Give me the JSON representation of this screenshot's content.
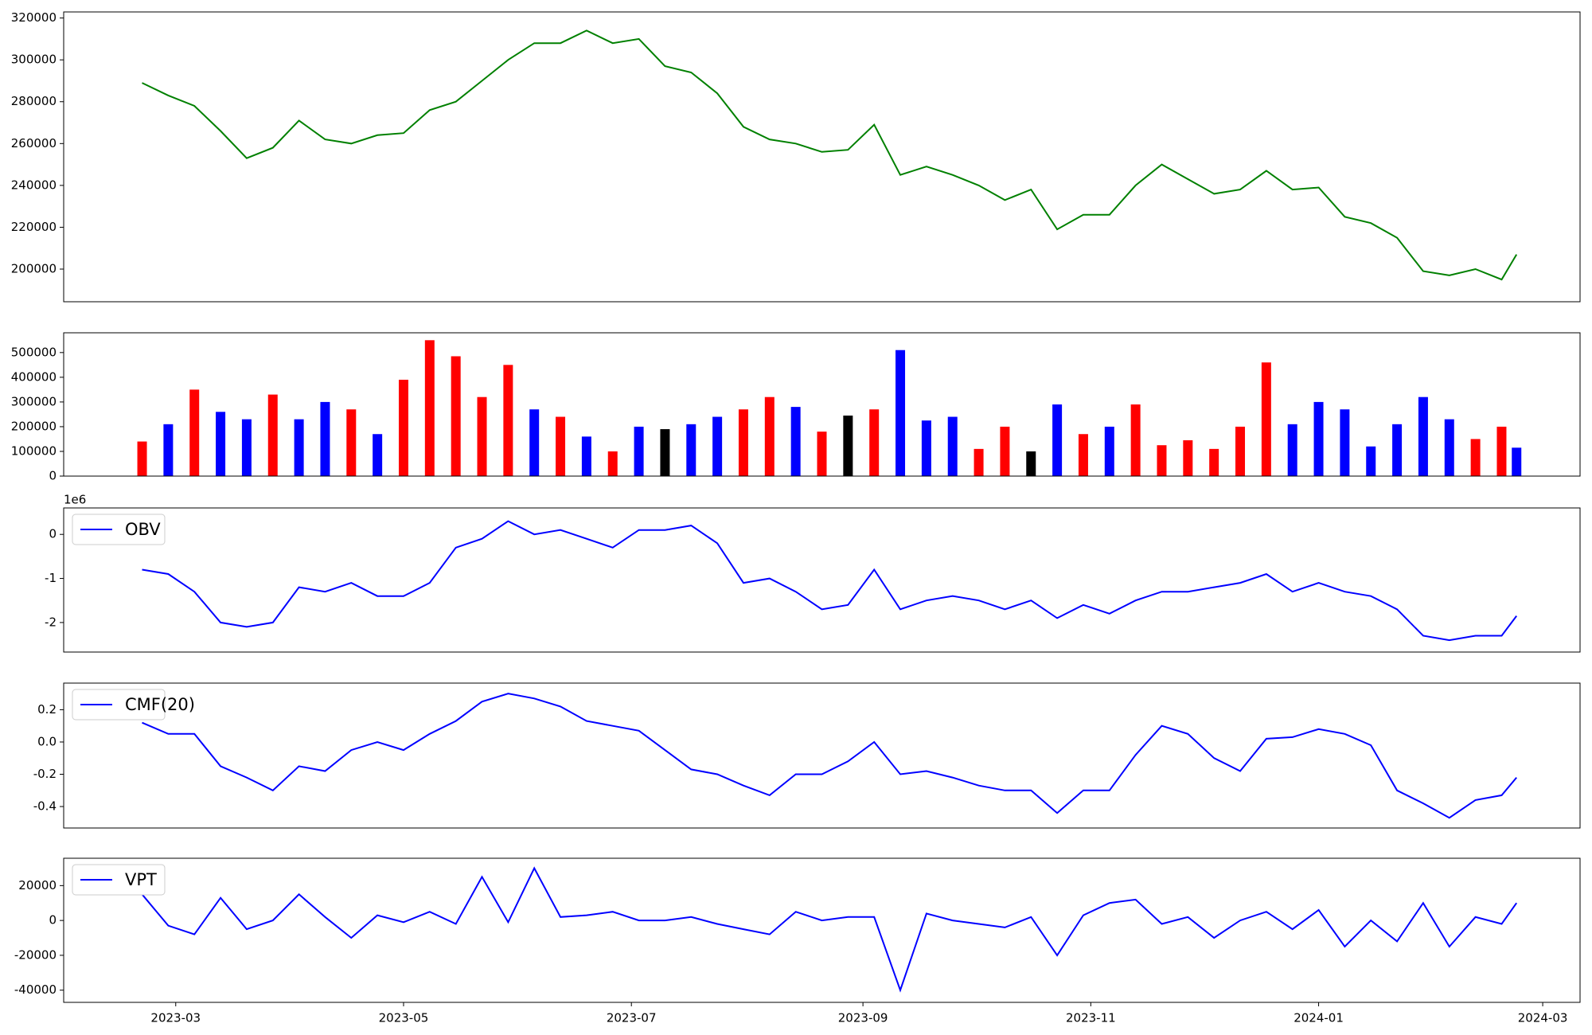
{
  "chart_data": [
    {
      "type": "line",
      "series": [
        {
          "color": "#008000",
          "values": [
            289000,
            283000,
            278000,
            266000,
            253000,
            258000,
            271000,
            262000,
            260000,
            264000,
            265000,
            276000,
            280000,
            290000,
            300000,
            308000,
            308000,
            314000,
            308000,
            310000,
            297000,
            294000,
            284000,
            268000,
            262000,
            260000,
            256000,
            257000,
            269000,
            245000,
            249000,
            245000,
            240000,
            233000,
            238000,
            219000,
            226000,
            226000,
            240000,
            250000,
            243000,
            236000,
            238000,
            247000,
            238000,
            239000,
            225000,
            222000,
            215000,
            199000,
            197000,
            200000,
            195000,
            207000
          ]
        }
      ],
      "ylim": [
        184400,
        322900
      ],
      "yticks": [
        200000,
        220000,
        240000,
        260000,
        280000,
        300000,
        320000
      ]
    },
    {
      "type": "bar",
      "series": [
        {
          "values": [
            140000,
            210000,
            350000,
            260000,
            230000,
            330000,
            230000,
            300000,
            270000,
            170000,
            390000,
            550000,
            485000,
            320000,
            450000,
            270000,
            240000,
            160000,
            100000,
            200000,
            190000,
            210000,
            240000,
            270000,
            320000,
            280000,
            180000,
            245000,
            270000,
            510000,
            225000,
            240000,
            110000,
            200000,
            100000,
            290000,
            170000,
            200000,
            290000,
            125000,
            145000,
            110000,
            200000,
            460000,
            210000,
            300000,
            270000,
            120000,
            210000,
            320000,
            230000,
            150000,
            200000,
            115000
          ],
          "colors": [
            "#ff0000",
            "#0000ff",
            "#ff0000",
            "#0000ff",
            "#0000ff",
            "#ff0000",
            "#0000ff",
            "#0000ff",
            "#ff0000",
            "#0000ff",
            "#ff0000",
            "#ff0000",
            "#ff0000",
            "#ff0000",
            "#ff0000",
            "#0000ff",
            "#ff0000",
            "#0000ff",
            "#ff0000",
            "#0000ff",
            "#000000",
            "#0000ff",
            "#0000ff",
            "#ff0000",
            "#ff0000",
            "#0000ff",
            "#ff0000",
            "#000000",
            "#ff0000",
            "#0000ff",
            "#0000ff",
            "#0000ff",
            "#ff0000",
            "#ff0000",
            "#000000",
            "#0000ff",
            "#ff0000",
            "#0000ff",
            "#ff0000",
            "#ff0000",
            "#ff0000",
            "#ff0000",
            "#ff0000",
            "#ff0000",
            "#0000ff",
            "#0000ff",
            "#0000ff",
            "#0000ff",
            "#0000ff",
            "#0000ff",
            "#0000ff",
            "#ff0000",
            "#ff0000",
            "#0000ff"
          ]
        }
      ],
      "ylim": [
        0,
        580000
      ],
      "yticks": [
        0,
        100000,
        200000,
        300000,
        400000,
        500000
      ]
    },
    {
      "type": "line",
      "offset_label": "1e6",
      "legend": "upper left",
      "series": [
        {
          "name": "OBV",
          "color": "#0000ff",
          "values": [
            -0.8,
            -0.9,
            -1.3,
            -2.0,
            -2.1,
            -2.0,
            -1.2,
            -1.3,
            -1.1,
            -1.4,
            -1.4,
            -1.1,
            -0.3,
            -0.1,
            0.3,
            0.0,
            0.1,
            -0.1,
            -0.3,
            0.1,
            0.1,
            0.2,
            -0.2,
            -1.1,
            -1.0,
            -1.3,
            -1.7,
            -1.6,
            -0.8,
            -1.7,
            -1.5,
            -1.4,
            -1.5,
            -1.7,
            -1.5,
            -1.9,
            -1.6,
            -1.8,
            -1.5,
            -1.3,
            -1.3,
            -1.2,
            -1.1,
            -0.9,
            -1.3,
            -1.1,
            -1.3,
            -1.4,
            -1.7,
            -2.3,
            -2.4,
            -2.3,
            -2.3,
            -1.85
          ]
        }
      ],
      "ylim": [
        -2.67,
        0.6
      ],
      "yticks": [
        -2,
        -1,
        0
      ]
    },
    {
      "type": "line",
      "legend": "upper left",
      "series": [
        {
          "name": "CMF(20)",
          "color": "#0000ff",
          "values": [
            0.12,
            0.05,
            0.05,
            -0.15,
            -0.22,
            -0.3,
            -0.15,
            -0.18,
            -0.05,
            0.0,
            -0.05,
            0.05,
            0.13,
            0.25,
            0.3,
            0.27,
            0.22,
            0.13,
            0.1,
            0.07,
            -0.05,
            -0.17,
            -0.2,
            -0.27,
            -0.33,
            -0.2,
            -0.2,
            -0.12,
            0.0,
            -0.2,
            -0.18,
            -0.22,
            -0.27,
            -0.3,
            -0.3,
            -0.44,
            -0.3,
            -0.3,
            -0.08,
            0.1,
            0.05,
            -0.1,
            -0.18,
            0.02,
            0.03,
            0.08,
            0.05,
            -0.02,
            -0.3,
            -0.38,
            -0.47,
            -0.36,
            -0.33,
            -0.22
          ]
        }
      ],
      "ylim": [
        -0.533,
        0.365
      ],
      "yticks": [
        -0.4,
        -0.2,
        {
          "value": 0,
          "label": "0.0"
        },
        0.2
      ]
    },
    {
      "type": "line",
      "legend": "upper left",
      "series": [
        {
          "name": "VPT",
          "color": "#0000ff",
          "values": [
            15000,
            -3000,
            -8000,
            13000,
            -5000,
            0,
            15000,
            2000,
            -10000,
            3000,
            -1000,
            5000,
            -2000,
            25000,
            -1000,
            30000,
            2000,
            3000,
            5000,
            0,
            0,
            2000,
            -2000,
            -5000,
            -8000,
            5000,
            0,
            2000,
            2000,
            -40000,
            4000,
            0,
            -2000,
            -4000,
            2000,
            -20000,
            3000,
            10000,
            12000,
            -2000,
            2000,
            -10000,
            0,
            5000,
            -5000,
            6000,
            -15000,
            0,
            -12000,
            10000,
            -15000,
            2000,
            -2000,
            10000
          ]
        }
      ],
      "ylim": [
        -47000,
        35700
      ],
      "yticks": [
        -40000,
        -20000,
        0,
        20000
      ],
      "x": [
        "2023-02-20",
        "2023-02-27",
        "2023-03-06",
        "2023-03-13",
        "2023-03-20",
        "2023-03-27",
        "2023-04-03",
        "2023-04-10",
        "2023-04-17",
        "2023-04-24",
        "2023-05-01",
        "2023-05-08",
        "2023-05-15",
        "2023-05-22",
        "2023-05-29",
        "2023-06-05",
        "2023-06-12",
        "2023-06-19",
        "2023-06-26",
        "2023-07-03",
        "2023-07-10",
        "2023-07-17",
        "2023-07-24",
        "2023-07-31",
        "2023-08-07",
        "2023-08-14",
        "2023-08-21",
        "2023-08-28",
        "2023-09-04",
        "2023-09-11",
        "2023-09-18",
        "2023-09-25",
        "2023-10-02",
        "2023-10-09",
        "2023-10-16",
        "2023-10-23",
        "2023-10-30",
        "2023-11-06",
        "2023-11-13",
        "2023-11-20",
        "2023-11-27",
        "2023-12-04",
        "2023-12-11",
        "2023-12-18",
        "2023-12-25",
        "2024-01-01",
        "2024-01-08",
        "2024-01-15",
        "2024-01-22",
        "2024-01-29",
        "2024-02-05",
        "2024-02-12",
        "2024-02-19",
        "2024-02-23"
      ],
      "xlim": [
        "2023-01-30",
        "2024-03-11"
      ],
      "xticks": [
        {
          "value": "2023-03-01",
          "label": "2023-03"
        },
        {
          "value": "2023-05-01",
          "label": "2023-05"
        },
        {
          "value": "2023-07-01",
          "label": "2023-07"
        },
        {
          "value": "2023-09-01",
          "label": "2023-09"
        },
        {
          "value": "2023-11-01",
          "label": "2023-11"
        },
        {
          "value": "2024-01-01",
          "label": "2024-01"
        },
        {
          "value": "2024-03-01",
          "label": "2024-03"
        }
      ]
    }
  ]
}
